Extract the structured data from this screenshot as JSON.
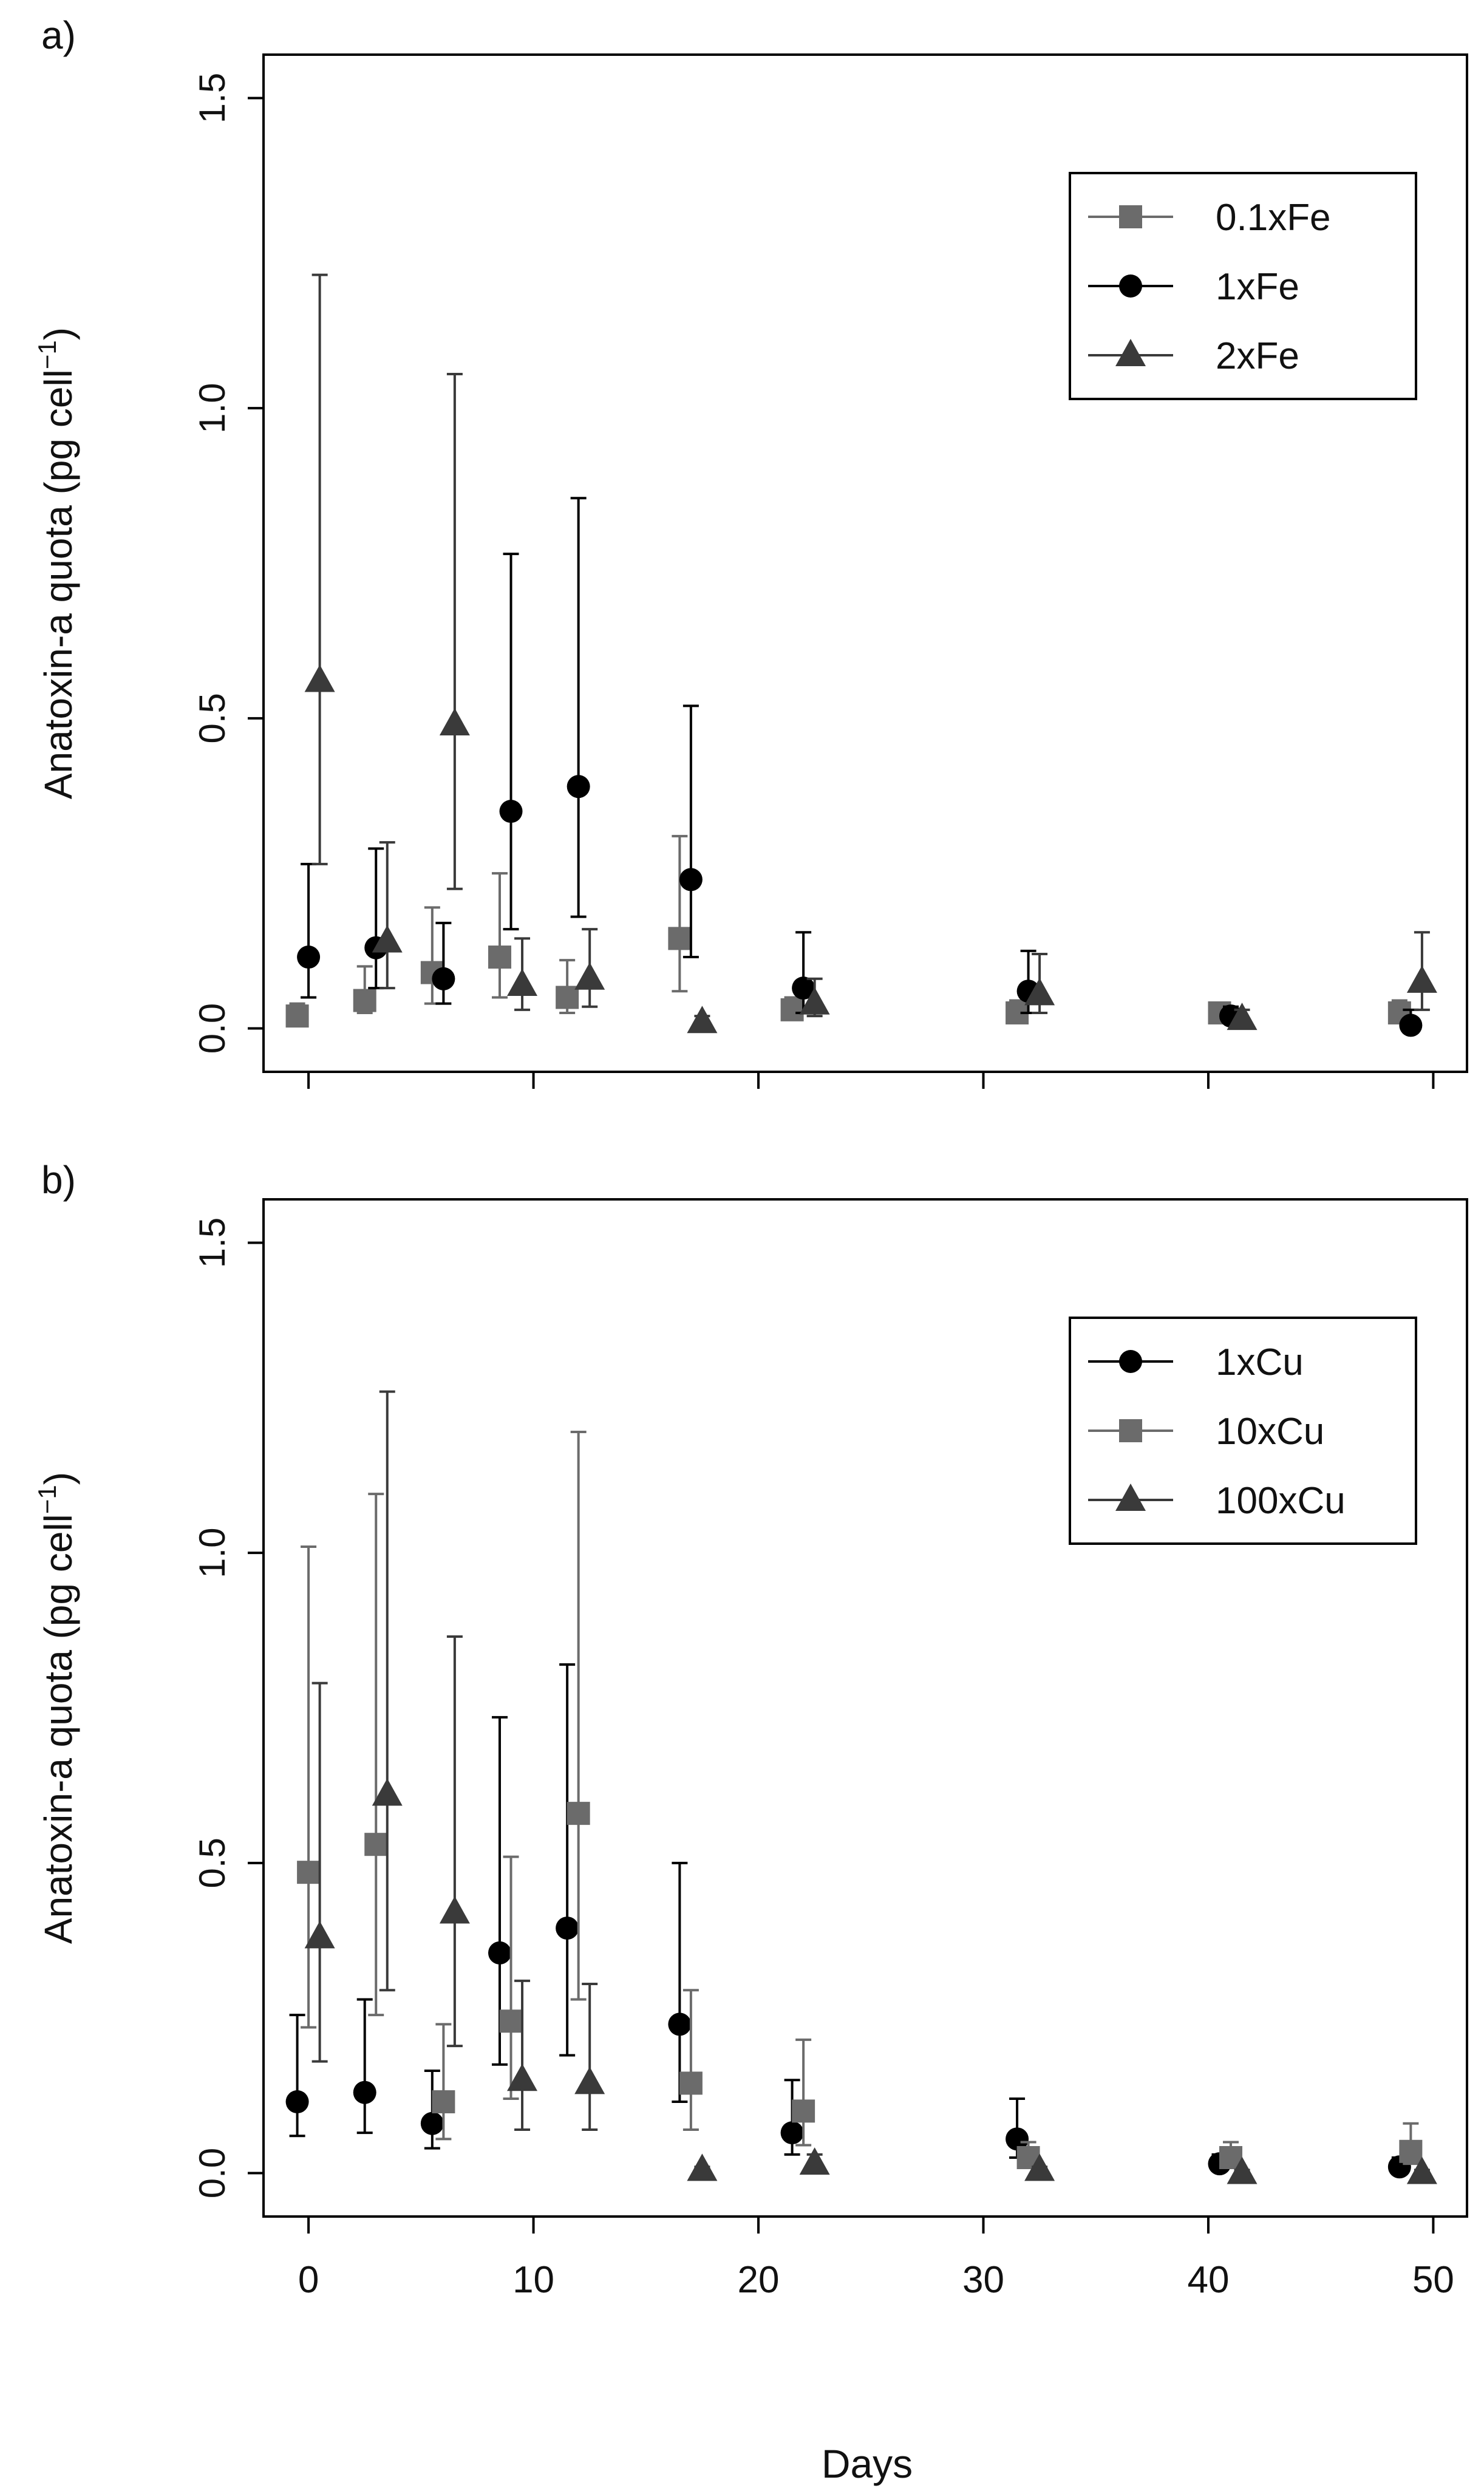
{
  "figure": {
    "xlabel": "Days",
    "colors": {
      "black": "#000000",
      "gray": "#6b6b6b",
      "darkgray": "#3a3a3a"
    },
    "x_ticks": [
      "0",
      "10",
      "20",
      "30",
      "40",
      "50"
    ],
    "y_ticks": [
      "0.0",
      "0.5",
      "1.0",
      "1.5"
    ]
  },
  "chart_data": [
    {
      "type": "scatter",
      "panel_label": "a)",
      "ylabel": "Anatoxin-a quota (pg  cell",
      "ylabel_sup": "−1",
      "ylabel_close": ")",
      "xlim": [
        -2,
        51.5
      ],
      "ylim": [
        -0.07,
        1.57
      ],
      "grid": false,
      "legend_position": "top-right",
      "series": [
        {
          "name": "0.1xFe",
          "marker": "square",
          "color": "#6b6b6b",
          "x": [
            -0.5,
            2.5,
            5.5,
            8.5,
            11.5,
            16.5,
            21.5,
            31.5,
            40.5,
            48.5
          ],
          "y": [
            0.02,
            0.045,
            0.09,
            0.115,
            0.05,
            0.145,
            0.03,
            0.025,
            0.025,
            0.025
          ],
          "err_low": [
            0.02,
            0.025,
            0.04,
            0.05,
            0.025,
            0.06,
            0.02,
            0.02,
            0.015,
            0.02
          ],
          "err_high": [
            0.04,
            0.1,
            0.195,
            0.25,
            0.11,
            0.31,
            0.05,
            0.045,
            0.04,
            0.045
          ]
        },
        {
          "name": "1xFe",
          "marker": "circle",
          "color": "#000000",
          "x": [
            0,
            3,
            6,
            9,
            12,
            17,
            22,
            32,
            41,
            49
          ],
          "y": [
            0.115,
            0.13,
            0.08,
            0.35,
            0.39,
            0.24,
            0.065,
            0.06,
            0.02,
            0.005
          ],
          "err_low": [
            0.05,
            0.065,
            0.04,
            0.16,
            0.18,
            0.115,
            0.025,
            0.025,
            0.01,
            0.0
          ],
          "err_high": [
            0.265,
            0.29,
            0.17,
            0.765,
            0.855,
            0.52,
            0.155,
            0.125,
            0.035,
            0.03
          ]
        },
        {
          "name": "2xFe",
          "marker": "triangle",
          "color": "#3a3a3a",
          "x": [
            0.5,
            3.5,
            6.5,
            9.5,
            12.5,
            17.5,
            22.5,
            32.5,
            41.5,
            49.5
          ],
          "y": [
            0.56,
            0.14,
            0.49,
            0.07,
            0.08,
            0.01,
            0.04,
            0.055,
            0.015,
            0.075
          ],
          "err_low": [
            0.265,
            0.065,
            0.225,
            0.03,
            0.035,
            0.005,
            0.02,
            0.025,
            0.005,
            0.03
          ],
          "err_high": [
            1.215,
            0.3,
            1.055,
            0.145,
            0.16,
            0.02,
            0.08,
            0.12,
            0.03,
            0.155
          ]
        }
      ]
    },
    {
      "type": "scatter",
      "panel_label": "b)",
      "ylabel": "Anatoxin-a quota (pg  cell",
      "ylabel_sup": "−1",
      "ylabel_close": ")",
      "xlim": [
        -2,
        51.5
      ],
      "ylim": [
        -0.07,
        1.57
      ],
      "grid": false,
      "legend_position": "top-right",
      "series": [
        {
          "name": "1xCu",
          "marker": "circle",
          "color": "#000000",
          "x": [
            -0.5,
            2.5,
            5.5,
            8.5,
            11.5,
            16.5,
            21.5,
            31.5,
            40.5,
            48.5
          ],
          "y": [
            0.115,
            0.13,
            0.08,
            0.355,
            0.395,
            0.24,
            0.065,
            0.055,
            0.015,
            0.01
          ],
          "err_low": [
            0.06,
            0.065,
            0.04,
            0.175,
            0.19,
            0.115,
            0.03,
            0.025,
            0.005,
            0.0
          ],
          "err_high": [
            0.255,
            0.28,
            0.165,
            0.735,
            0.82,
            0.5,
            0.15,
            0.12,
            0.03,
            0.025
          ]
        },
        {
          "name": "10xCu",
          "marker": "square",
          "color": "#6b6b6b",
          "x": [
            0,
            3,
            6,
            9,
            12,
            17,
            22,
            32,
            41,
            49
          ],
          "y": [
            0.485,
            0.53,
            0.115,
            0.245,
            0.58,
            0.145,
            0.1,
            0.025,
            0.025,
            0.035
          ],
          "err_low": [
            0.235,
            0.255,
            0.055,
            0.12,
            0.28,
            0.07,
            0.045,
            0.01,
            0.01,
            0.015
          ],
          "err_high": [
            1.01,
            1.095,
            0.24,
            0.51,
            1.195,
            0.295,
            0.215,
            0.05,
            0.05,
            0.08
          ]
        },
        {
          "name": "100xCu",
          "marker": "triangle",
          "color": "#3a3a3a",
          "x": [
            0.5,
            3.5,
            6.5,
            9.5,
            12.5,
            17.5,
            22.5,
            32.5,
            41.5,
            49.5
          ],
          "y": [
            0.38,
            0.61,
            0.42,
            0.15,
            0.145,
            0.005,
            0.015,
            0.005,
            0.0,
            0.0
          ],
          "err_low": [
            0.18,
            0.295,
            0.205,
            0.07,
            0.07,
            0.0,
            0.005,
            0.0,
            0.0,
            0.0
          ],
          "err_high": [
            0.79,
            1.26,
            0.865,
            0.31,
            0.305,
            0.01,
            0.03,
            0.01,
            0.005,
            0.005
          ]
        }
      ]
    }
  ]
}
